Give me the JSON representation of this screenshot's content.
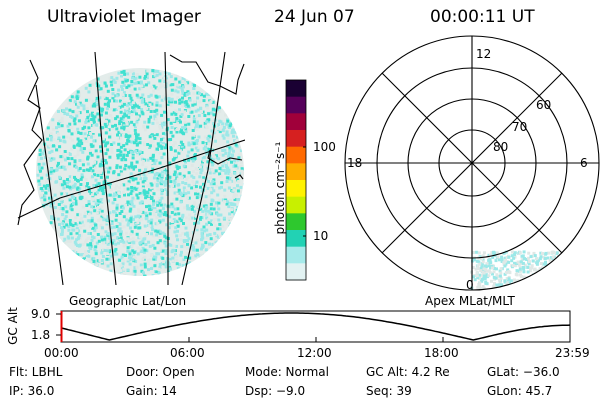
{
  "header": {
    "instrument": "Ultraviolet Imager",
    "date": "24 Jun 07",
    "time": "00:00:11 UT"
  },
  "colorbar": {
    "unit_label": "photon cm⁻²s⁻¹",
    "tick_100": "100",
    "tick_10": "10",
    "colors": [
      "#1a0033",
      "#55005a",
      "#a0003a",
      "#d62020",
      "#ff6a00",
      "#ffae00",
      "#fff200",
      "#c8f000",
      "#2ec82e",
      "#22d2b4",
      "#a6eaea",
      "#e2f2f2"
    ]
  },
  "geo_panel": {
    "label": "Geographic Lat/Lon",
    "speckle_colors": [
      "#3fe0d0",
      "#9ce8e8",
      "#dfe8e6"
    ]
  },
  "polar_panel": {
    "label": "Apex MLat/MLT",
    "mlt_12": "12",
    "mlt_18": "18",
    "mlt_6": "6",
    "mlt_0": "0",
    "lat_60": "60",
    "lat_70": "70",
    "lat_80": "80"
  },
  "altitude_plot": {
    "ylabel": "GC Alt",
    "y_top": "9.0",
    "y_bottom": "1.8",
    "x_ticks": [
      "00:00",
      "06:00",
      "12:00",
      "18:00",
      "23:59"
    ]
  },
  "footer": {
    "flt": "Flt: LBHL",
    "door": "Door: Open",
    "mode": "Mode: Normal",
    "gcalt": "GC Alt: 4.2 Re",
    "glat": "GLat: −36.0",
    "ip": "IP: 36.0",
    "gain": "Gain: 14",
    "dsp": "Dsp:    −9.0",
    "seq": "Seq: 39",
    "glon": "GLon:  45.7"
  }
}
